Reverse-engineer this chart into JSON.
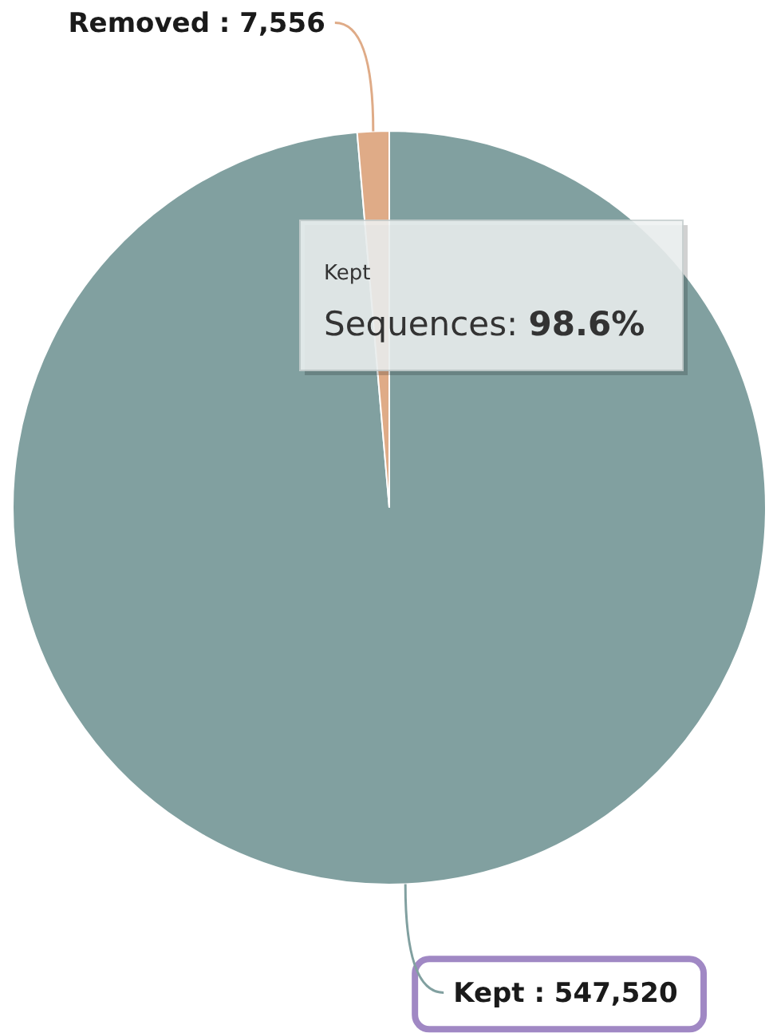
{
  "chart_data": {
    "type": "pie",
    "categories": [
      null,
      null
    ],
    "values": [
      547520,
      7556
    ],
    "colors": [
      "#81a0a0",
      "#dfab87"
    ],
    "value_labels": [
      "Kept : 547,520",
      "Removed : 7,556"
    ],
    "annotations": [
      "Kept",
      "Sequences: 98.6%"
    ]
  }
}
